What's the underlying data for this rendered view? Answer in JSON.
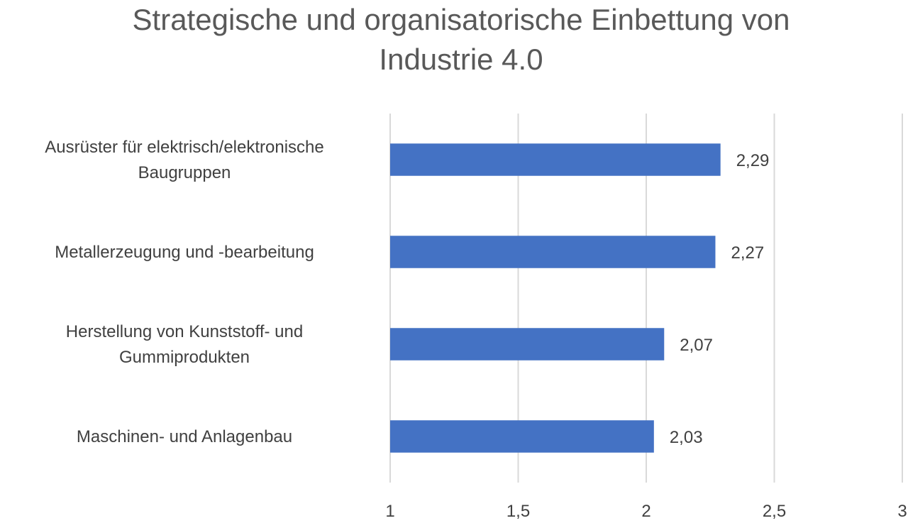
{
  "chart_data": {
    "type": "bar",
    "orientation": "horizontal",
    "title_lines": [
      "Strategische und organisatorische Einbettung von",
      "Industrie 4.0"
    ],
    "categories": [
      [
        "Ausrüster für elektrisch/elektronische",
        "Baugruppen"
      ],
      [
        "Metallerzeugung und -bearbeitung"
      ],
      [
        "Herstellung von Kunststoff- und",
        "Gummiprodukten"
      ],
      [
        "Maschinen- und Anlagenbau"
      ]
    ],
    "values": [
      2.29,
      2.27,
      2.07,
      2.03
    ],
    "data_labels": [
      "2,29",
      "2,27",
      "2,07",
      "2,03"
    ],
    "xlim": [
      1,
      3
    ],
    "ticks": [
      1,
      1.5,
      2,
      2.5,
      3
    ],
    "tick_labels": [
      "1",
      "1,5",
      "2",
      "2,5",
      "3"
    ],
    "grid": true,
    "legend": "none",
    "colors": {
      "bar": "#4472C4",
      "grid": "#D9D9D9",
      "text": "#404040",
      "title": "#595959"
    }
  }
}
